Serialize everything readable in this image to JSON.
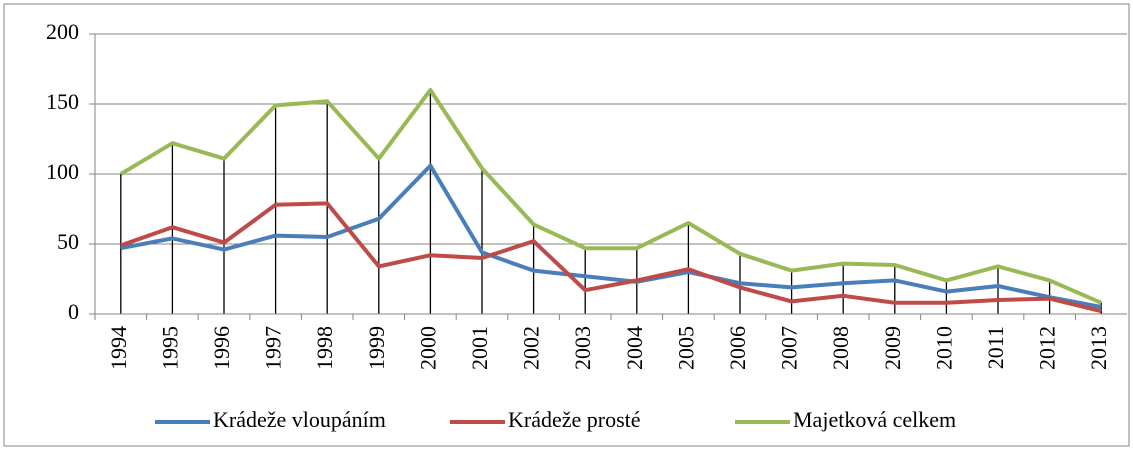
{
  "chart_data": {
    "type": "line",
    "categories": [
      "1994",
      "1995",
      "1996",
      "1997",
      "1998",
      "1999",
      "2000",
      "2001",
      "2002",
      "2003",
      "2004",
      "2005",
      "2006",
      "2007",
      "2008",
      "2009",
      "2010",
      "2011",
      "2012",
      "2013"
    ],
    "series": [
      {
        "name": "Krádeže vloupáním",
        "color": "#4a7ebb",
        "values": [
          47,
          54,
          46,
          56,
          55,
          68,
          106,
          44,
          31,
          27,
          23,
          30,
          22,
          19,
          22,
          24,
          16,
          20,
          12,
          5
        ]
      },
      {
        "name": "Krádeže prosté",
        "color": "#be4b48",
        "values": [
          49,
          62,
          51,
          78,
          79,
          34,
          42,
          40,
          52,
          17,
          24,
          32,
          19,
          9,
          13,
          8,
          8,
          10,
          11,
          2
        ]
      },
      {
        "name": "Majetková celkem",
        "color": "#98b954",
        "values": [
          100,
          122,
          111,
          149,
          152,
          111,
          160,
          104,
          64,
          47,
          47,
          65,
          43,
          31,
          36,
          35,
          24,
          34,
          24,
          8
        ]
      }
    ],
    "ylim": [
      0,
      200
    ],
    "yticks": [
      0,
      50,
      100,
      150,
      200
    ],
    "grid": true,
    "drop_lines": true,
    "legend": "bottom"
  }
}
